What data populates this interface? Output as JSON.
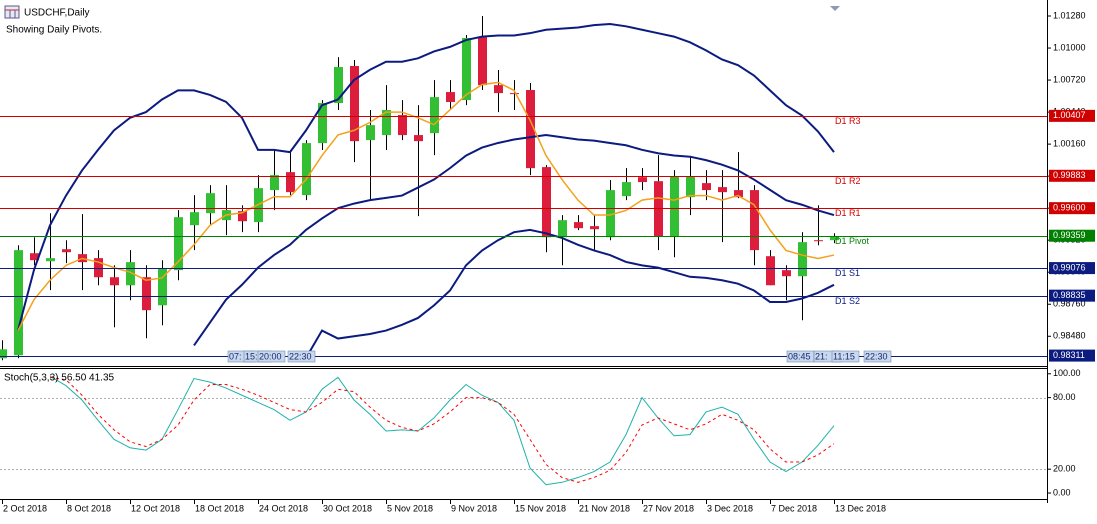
{
  "header": {
    "symbol": "USDCHF,Daily",
    "note": "Showing Daily Pivots."
  },
  "session_labels": [
    [
      "07:",
      "15:",
      "20:00",
      "22:30"
    ],
    [
      "08:45",
      "21:",
      "11:15",
      "22:30"
    ]
  ],
  "chart_data": [
    {
      "type": "candlestick",
      "categories": [
        "2 Oct 2018",
        null,
        null,
        null,
        "8 Oct 2018",
        null,
        null,
        null,
        "12 Oct 2018",
        null,
        null,
        null,
        "18 Oct 2018",
        null,
        null,
        null,
        "24 Oct 2018",
        null,
        null,
        null,
        "30 Oct 2018",
        null,
        null,
        null,
        "5 Nov 2018",
        null,
        null,
        null,
        "9 Nov 2018",
        null,
        null,
        null,
        "15 Nov 2018",
        null,
        null,
        null,
        "21 Nov 2018",
        null,
        null,
        null,
        "27 Nov 2018",
        null,
        null,
        null,
        "3 Dec 2018",
        null,
        null,
        null,
        "7 Dec 2018",
        null,
        null,
        null,
        "13 Dec 2018"
      ],
      "open": [
        0.98288,
        0.98314,
        0.99206,
        0.99136,
        0.99241,
        0.99198,
        0.99163,
        0.98996,
        0.98926,
        0.98996,
        0.98751,
        0.99058,
        0.99451,
        0.99556,
        0.99495,
        0.99574,
        0.99478,
        0.99758,
        0.99915,
        0.99714,
        1.00169,
        1.00519,
        1.00843,
        1.00195,
        1.00239,
        1.00414,
        1.00239,
        1.00256,
        1.00615,
        1.00545,
        1.01096,
        1.00676,
        1.00606,
        1.00633,
        0.99959,
        0.99346,
        0.99478,
        0.99443,
        0.99346,
        0.99705,
        0.99871,
        0.99836,
        0.99355,
        0.99696,
        0.99819,
        0.99784,
        0.99758,
        0.99758,
        0.9918,
        0.99058,
        0.99005,
        0.9932,
        0.9932
      ],
      "high": [
        0.98445,
        0.99276,
        0.99346,
        0.99556,
        0.9932,
        0.99548,
        0.99233,
        0.99101,
        0.99233,
        0.99101,
        0.99145,
        0.99583,
        0.99714,
        0.99801,
        0.99801,
        0.99626,
        0.99889,
        1.00108,
        1.00108,
        1.00195,
        1.00545,
        1.00921,
        1.00895,
        1.00458,
        1.00676,
        1.00545,
        1.00501,
        1.0072,
        1.0072,
        1.01114,
        1.0128,
        1.00808,
        1.0072,
        1.00694,
        0.99976,
        0.99539,
        0.99539,
        0.99539,
        0.99845,
        0.9995,
        0.9995,
        1.00064,
        0.99933,
        1.00046,
        0.99933,
        0.99933,
        1.0009,
        0.99801,
        0.99233,
        0.99101,
        0.9939,
        0.99626,
        0.99381
      ],
      "low": [
        0.9827,
        0.98288,
        0.99101,
        0.98883,
        0.99119,
        0.98883,
        0.98926,
        0.98559,
        0.98795,
        0.98463,
        0.98576,
        0.9897,
        0.99233,
        0.99451,
        0.99364,
        0.9939,
        0.9939,
        0.99583,
        0.99714,
        0.9967,
        1.00108,
        1.00458,
        1.00003,
        0.9967,
        1.00108,
        1.00195,
        0.9953,
        1.00064,
        1.00458,
        1.00501,
        1.00633,
        1.0044,
        1.00458,
        0.99889,
        0.99215,
        0.99101,
        0.99408,
        0.99233,
        0.9932,
        0.9967,
        0.99758,
        0.99233,
        0.99171,
        0.99539,
        0.9967,
        0.99303,
        0.99688,
        0.99101,
        0.98926,
        0.98795,
        0.9862,
        0.99276,
        0.99294
      ],
      "close": [
        0.98366,
        0.99233,
        0.99145,
        0.99163,
        0.99215,
        0.99128,
        0.98996,
        0.98926,
        0.99128,
        0.98708,
        0.99075,
        0.99521,
        0.99565,
        0.99731,
        0.99583,
        0.99486,
        0.99775,
        0.99889,
        0.9974,
        1.00169,
        1.00519,
        1.00834,
        1.00186,
        1.00326,
        1.00458,
        1.00239,
        1.00186,
        1.00571,
        1.00528,
        1.01088,
        1.00676,
        1.00606,
        1.00598,
        0.9995,
        0.99346,
        0.99495,
        0.99425,
        0.99416,
        0.99758,
        0.99828,
        0.99828,
        0.99355,
        0.9988,
        0.9988,
        0.99758,
        0.9974,
        0.99696,
        0.99233,
        0.98926,
        0.99005,
        0.99303,
        0.99311,
        0.99355
      ],
      "up_color": "#33bf33",
      "down_color": "#dc1e3c",
      "wick_color": "#000000",
      "overlays": [
        {
          "color": "#0b1b7f",
          "values": [
            null,
            0.9853,
            0.9906,
            0.9945,
            0.9971,
            0.9993,
            1.0011,
            1.0028,
            1.0039,
            1.0044,
            1.0055,
            1.0063,
            1.0063,
            1.0059,
            1.0053,
            1.0039,
            1.0011,
            1.0011,
            1.0009,
            1.0028,
            1.005,
            1.0055,
            1.0072,
            1.0081,
            1.0088,
            1.0088,
            1.0091,
            1.0097,
            1.0101,
            1.0107,
            1.011,
            1.0111,
            1.0111,
            1.0113,
            1.0116,
            1.0117,
            1.0118,
            1.012,
            1.0121,
            1.0119,
            1.0116,
            1.0113,
            1.011,
            1.0105,
            1.0098,
            1.009,
            1.0085,
            1.0076,
            1.0063,
            1.005,
            1.0041,
            1.0027,
            1.0009
          ]
        },
        {
          "color": "#0b1b7f",
          "values": [
            null,
            null,
            null,
            null,
            null,
            null,
            null,
            null,
            null,
            null,
            null,
            null,
            0.984,
            0.986,
            0.988,
            0.9893,
            0.9908,
            0.9919,
            0.9928,
            0.9941,
            0.9951,
            0.996,
            0.9964,
            0.9967,
            0.9969,
            0.9971,
            0.9978,
            0.9985,
            0.9995,
            1.0006,
            1.0013,
            1.0017,
            1.002,
            1.0022,
            1.0024,
            1.0022,
            1.002,
            1.0019,
            1.0017,
            1.0015,
            1.0011,
            1.0008,
            1.0006,
            1.0005,
            1.0002,
            0.9998,
            0.9993,
            0.9985,
            0.9976,
            0.9967,
            0.9963,
            0.9958,
            0.9954
          ]
        },
        {
          "color": "#0b1b7f",
          "values": [
            null,
            null,
            null,
            null,
            null,
            null,
            null,
            null,
            null,
            null,
            null,
            null,
            null,
            null,
            null,
            null,
            null,
            null,
            null,
            0.9829,
            0.9853,
            0.9846,
            0.9848,
            0.985,
            0.9853,
            0.9858,
            0.9864,
            0.9875,
            0.9888,
            0.991,
            0.9923,
            0.9932,
            0.9939,
            0.9941,
            0.9938,
            0.9934,
            0.9928,
            0.9923,
            0.9919,
            0.9913,
            0.991,
            0.9908,
            0.9904,
            0.99,
            0.9899,
            0.9897,
            0.9894,
            0.9888,
            0.9878,
            0.9878,
            0.9881,
            0.9886,
            0.9893
          ]
        },
        {
          "color": "#f5a01a",
          "values": [
            null,
            0.9853,
            0.988,
            0.9897,
            0.991,
            0.9916,
            0.9913,
            0.9908,
            0.9904,
            0.9897,
            0.9899,
            0.9913,
            0.9928,
            0.9945,
            0.9954,
            0.9956,
            0.9963,
            0.997,
            0.997,
            0.9985,
            1.0006,
            1.0024,
            1.0028,
            1.0035,
            1.0044,
            1.0044,
            1.0039,
            1.0033,
            1.0046,
            1.0059,
            1.0068,
            1.007,
            1.0063,
            1.0037,
            1.0006,
            0.9985,
            0.9967,
            0.9954,
            0.9954,
            0.9958,
            0.9967,
            0.9969,
            0.9967,
            0.9971,
            0.9971,
            0.9967,
            0.9971,
            0.9963,
            0.9941,
            0.9923,
            0.9919,
            0.9916,
            0.9919
          ]
        }
      ],
      "pivots": {
        "names": [
          "D1 R3",
          "D1 R2",
          "D1 R1",
          "D1 Pivot",
          "D1 S1",
          "D1 S2",
          null
        ],
        "values": [
          1.00407,
          0.99883,
          0.996,
          0.99359,
          0.99076,
          0.98835,
          0.98311
        ],
        "value_labels": [
          "1.00407",
          "0.99883",
          "0.99600",
          "0.99359",
          "0.99076",
          "0.98835",
          "0.98311"
        ],
        "colors": [
          "#d00000",
          "#d00000",
          "#d00000",
          "#008000",
          "#0b1b7f",
          "#0b1b7f",
          "#0b1b7f"
        ]
      },
      "ylim": [
        0.9822,
        1.0142
      ],
      "yticks": [
        {
          "value": 1.0128,
          "label": "1.01280"
        },
        {
          "value": 1.01,
          "label": "1.01000"
        },
        {
          "value": 1.0072,
          "label": "1.00720"
        },
        {
          "value": 1.0044,
          "label": "1.00440"
        },
        {
          "value": 1.0016,
          "label": "1.00160"
        },
        {
          "value": 0.9988,
          "label": "0.99880"
        },
        {
          "value": 0.996,
          "label": "0.99600"
        },
        {
          "value": 0.9932,
          "label": "0.99320"
        },
        {
          "value": 0.9904,
          "label": "0.99040"
        },
        {
          "value": 0.9876,
          "label": "0.98760"
        },
        {
          "value": 0.9848,
          "label": "0.98480"
        }
      ]
    },
    {
      "type": "line",
      "title": "Stoch(5,3,3) 56.50 41.35",
      "series": [
        {
          "color": "#20b2aa",
          "dash": false,
          "values": [
            null,
            null,
            null,
            98,
            90,
            78,
            61,
            45,
            38,
            36,
            45,
            70,
            96,
            93,
            88,
            82,
            76,
            70,
            61,
            68,
            87,
            97,
            78,
            66,
            52,
            53,
            52,
            63,
            78,
            91,
            82,
            76,
            61,
            21,
            7,
            9,
            13,
            18,
            26,
            49,
            80,
            63,
            48,
            49,
            68,
            72,
            66,
            45,
            26,
            18,
            26,
            40,
            56.5
          ]
        },
        {
          "color": "#ff0000",
          "dash": true,
          "values": [
            null,
            null,
            null,
            97,
            95,
            82,
            66,
            53,
            43,
            39,
            45,
            57,
            78,
            91,
            91,
            87,
            82,
            76,
            70,
            68,
            76,
            87,
            85,
            72,
            61,
            55,
            52,
            58,
            68,
            80,
            80,
            76,
            66,
            45,
            24,
            13,
            9,
            13,
            19,
            34,
            57,
            63,
            58,
            53,
            58,
            66,
            61,
            53,
            37,
            26,
            26,
            32,
            41.35
          ]
        }
      ],
      "levels": [
        80,
        20
      ],
      "ylim": [
        -5,
        104
      ],
      "yticks": [
        {
          "value": 100,
          "label": "100.00"
        },
        {
          "value": 80,
          "label": "80.00"
        },
        {
          "value": 20,
          "label": "20.00"
        },
        {
          "value": 0,
          "label": "0.00"
        }
      ]
    }
  ]
}
